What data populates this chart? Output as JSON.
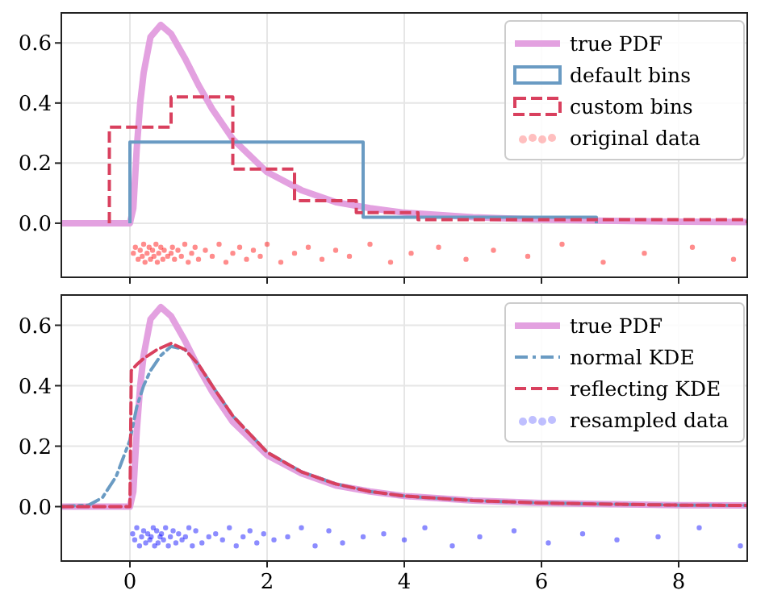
{
  "chart_data": [
    {
      "type": "line",
      "xlim": [
        -1,
        9
      ],
      "ylim": [
        -0.18,
        0.7
      ],
      "xticks": [
        {
          "value": 0,
          "label": null
        },
        {
          "value": 2,
          "label": null
        },
        {
          "value": 4,
          "label": null
        },
        {
          "value": 6,
          "label": null
        },
        {
          "value": 8,
          "label": null
        }
      ],
      "yticks": [
        {
          "value": 0,
          "label": "0.0"
        },
        0.2,
        0.4,
        0.6
      ],
      "tick_labels": "y",
      "grid": true,
      "legend": "top right",
      "series": [
        {
          "name": "true PDF",
          "color": "#e3a1e0",
          "line_style": "solid",
          "x": [
            -1,
            0,
            0.05,
            0.1,
            0.15,
            0.2,
            0.3,
            0.45,
            0.6,
            0.8,
            1.0,
            1.2,
            1.5,
            2.0,
            2.5,
            3.0,
            3.5,
            4.0,
            5.0,
            6.0,
            7.0,
            8.0,
            9.0
          ],
          "values": [
            0,
            0,
            0.05,
            0.25,
            0.4,
            0.5,
            0.62,
            0.66,
            0.63,
            0.55,
            0.46,
            0.38,
            0.28,
            0.17,
            0.11,
            0.07,
            0.05,
            0.035,
            0.02,
            0.012,
            0.008,
            0.005,
            0.004
          ]
        },
        {
          "name": "default bins",
          "type": "histogram",
          "color": "#6a9bc3",
          "line_style": "solid",
          "bins": [
            0,
            3.4,
            6.8
          ],
          "values": [
            0.27,
            0.02
          ]
        },
        {
          "name": "custom bins",
          "type": "histogram",
          "color": "#d9405e",
          "line_style": "dashed",
          "bins": [
            -0.3,
            0.6,
            1.5,
            2.4,
            3.3,
            4.2,
            9
          ],
          "values": [
            0.32,
            0.42,
            0.18,
            0.075,
            0.035,
            0.012
          ]
        },
        {
          "name": "original data",
          "type": "scatter",
          "color": "#ff0000",
          "marker": "circle",
          "x": [
            0.05,
            0.08,
            0.12,
            0.15,
            0.18,
            0.2,
            0.22,
            0.25,
            0.28,
            0.3,
            0.33,
            0.35,
            0.38,
            0.4,
            0.42,
            0.45,
            0.48,
            0.5,
            0.55,
            0.6,
            0.62,
            0.65,
            0.7,
            0.75,
            0.8,
            0.85,
            0.9,
            0.95,
            1.0,
            1.1,
            1.2,
            1.3,
            1.4,
            1.5,
            1.6,
            1.7,
            1.8,
            1.9,
            2.0,
            2.2,
            2.4,
            2.6,
            2.8,
            3.0,
            3.2,
            3.5,
            3.8,
            4.1,
            4.5,
            4.9,
            5.3,
            5.8,
            6.3,
            6.9,
            7.5,
            8.2,
            8.8
          ],
          "values": [
            -0.1,
            -0.08,
            -0.12,
            -0.09,
            -0.11,
            -0.07,
            -0.13,
            -0.1,
            -0.08,
            -0.12,
            -0.09,
            -0.11,
            -0.07,
            -0.13,
            -0.1,
            -0.08,
            -0.12,
            -0.09,
            -0.11,
            -0.1,
            -0.08,
            -0.12,
            -0.09,
            -0.11,
            -0.07,
            -0.13,
            -0.1,
            -0.08,
            -0.12,
            -0.09,
            -0.11,
            -0.07,
            -0.13,
            -0.1,
            -0.08,
            -0.12,
            -0.09,
            -0.11,
            -0.07,
            -0.13,
            -0.1,
            -0.08,
            -0.12,
            -0.09,
            -0.11,
            -0.07,
            -0.13,
            -0.1,
            -0.08,
            -0.12,
            -0.09,
            -0.11,
            -0.07,
            -0.13,
            -0.1,
            -0.08,
            -0.12
          ]
        }
      ]
    },
    {
      "type": "line",
      "xlim": [
        -1,
        9
      ],
      "ylim": [
        -0.18,
        0.7
      ],
      "xticks": [
        0,
        2,
        4,
        6,
        8
      ],
      "yticks": [
        {
          "value": 0,
          "label": "0.0"
        },
        0.2,
        0.4,
        0.6
      ],
      "grid": true,
      "legend": "top right",
      "series": [
        {
          "name": "true PDF",
          "color": "#e3a1e0",
          "line_style": "solid",
          "x": [
            -1,
            0,
            0.05,
            0.1,
            0.15,
            0.2,
            0.3,
            0.45,
            0.6,
            0.8,
            1.0,
            1.2,
            1.5,
            2.0,
            2.5,
            3.0,
            3.5,
            4.0,
            5.0,
            6.0,
            7.0,
            8.0,
            9.0
          ],
          "values": [
            0,
            0,
            0.05,
            0.25,
            0.4,
            0.5,
            0.62,
            0.66,
            0.63,
            0.55,
            0.46,
            0.38,
            0.28,
            0.17,
            0.11,
            0.07,
            0.05,
            0.035,
            0.02,
            0.012,
            0.008,
            0.005,
            0.004
          ]
        },
        {
          "name": "normal KDE",
          "color": "#6a9bc3",
          "line_style": "dashdot",
          "x": [
            -1,
            -0.6,
            -0.4,
            -0.2,
            0,
            0.1,
            0.2,
            0.3,
            0.45,
            0.6,
            0.8,
            1.0,
            1.2,
            1.5,
            2.0,
            2.5,
            3.0,
            3.5,
            4.0,
            5.0,
            6.0,
            7.0,
            8.0,
            9.0
          ],
          "values": [
            0,
            0.005,
            0.03,
            0.1,
            0.22,
            0.33,
            0.4,
            0.45,
            0.5,
            0.53,
            0.52,
            0.47,
            0.4,
            0.3,
            0.18,
            0.115,
            0.075,
            0.05,
            0.035,
            0.02,
            0.012,
            0.008,
            0.005,
            0.004
          ]
        },
        {
          "name": "reflecting KDE",
          "color": "#d9405e",
          "line_style": "dashed",
          "x": [
            -1,
            0,
            0.02,
            0.1,
            0.2,
            0.4,
            0.6,
            0.8,
            1.0,
            1.2,
            1.5,
            2.0,
            2.5,
            3.0,
            3.5,
            4.0,
            5.0,
            6.0,
            7.0,
            8.0,
            9.0
          ],
          "values": [
            0,
            0,
            0.45,
            0.47,
            0.49,
            0.52,
            0.54,
            0.52,
            0.47,
            0.4,
            0.3,
            0.18,
            0.115,
            0.075,
            0.05,
            0.035,
            0.02,
            0.012,
            0.008,
            0.005,
            0.004
          ]
        },
        {
          "name": "resampled data",
          "type": "scatter",
          "color": "#0000ff",
          "marker": "circle",
          "x": [
            0.04,
            0.07,
            0.1,
            0.14,
            0.17,
            0.2,
            0.23,
            0.26,
            0.29,
            0.31,
            0.34,
            0.36,
            0.39,
            0.41,
            0.44,
            0.46,
            0.49,
            0.52,
            0.56,
            0.59,
            0.63,
            0.67,
            0.71,
            0.76,
            0.81,
            0.86,
            0.91,
            0.96,
            1.05,
            1.15,
            1.25,
            1.35,
            1.45,
            1.55,
            1.65,
            1.75,
            1.85,
            1.95,
            2.1,
            2.3,
            2.5,
            2.7,
            2.9,
            3.1,
            3.4,
            3.7,
            4.0,
            4.3,
            4.7,
            5.1,
            5.6,
            6.1,
            6.6,
            7.1,
            7.7,
            8.3,
            8.9
          ],
          "values": [
            -0.09,
            -0.11,
            -0.07,
            -0.13,
            -0.1,
            -0.08,
            -0.12,
            -0.09,
            -0.11,
            -0.1,
            -0.07,
            -0.13,
            -0.08,
            -0.12,
            -0.1,
            -0.09,
            -0.11,
            -0.07,
            -0.13,
            -0.1,
            -0.08,
            -0.12,
            -0.09,
            -0.11,
            -0.1,
            -0.07,
            -0.13,
            -0.08,
            -0.12,
            -0.1,
            -0.09,
            -0.11,
            -0.07,
            -0.13,
            -0.1,
            -0.08,
            -0.12,
            -0.09,
            -0.11,
            -0.1,
            -0.07,
            -0.13,
            -0.08,
            -0.12,
            -0.1,
            -0.09,
            -0.11,
            -0.07,
            -0.13,
            -0.1,
            -0.08,
            -0.12,
            -0.09,
            -0.11,
            -0.1,
            -0.07,
            -0.13
          ]
        }
      ]
    }
  ]
}
